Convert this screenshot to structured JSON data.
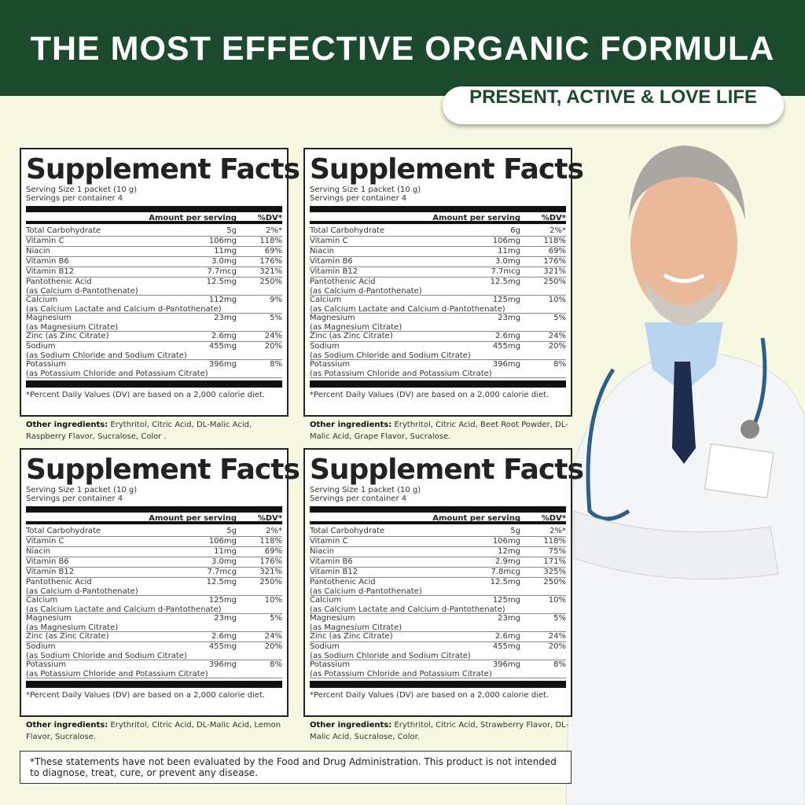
{
  "header": {
    "title": "THE MOST EFFECTIVE ORGANIC FORMULA",
    "tagline": "PRESENT, ACTIVE & LOVE LIFE",
    "colors": {
      "banner": "#1b4a2c",
      "background": "#f6f8e2"
    }
  },
  "panels": [
    {
      "title": "Supplement Facts",
      "serving_size": "Serving Size 1 packet (10 g)",
      "servings": "Servings per container 4",
      "col_amount": "Amount per serving",
      "col_dv": "%DV*",
      "rows": [
        {
          "name": "Total Carbohydrate",
          "sub": "",
          "amount": "5g",
          "dv": "2%*"
        },
        {
          "name": "Vitamin  C",
          "sub": "",
          "amount": "106mg",
          "dv": "118%"
        },
        {
          "name": "Niacin",
          "sub": "",
          "amount": "11mg",
          "dv": "69%"
        },
        {
          "name": "Vitamin B6",
          "sub": "",
          "amount": "3.0mg",
          "dv": "176%"
        },
        {
          "name": "Vitamin B12",
          "sub": "",
          "amount": "7.7mcg",
          "dv": "321%"
        },
        {
          "name": "Pantothenic Acid",
          "sub": "(as Calcium d-Pantothenate)",
          "amount": "12.5mg",
          "dv": "250%"
        },
        {
          "name": "Calcium",
          "sub": "(as Calcium Lactate and Calcium d-Pantothenate)",
          "amount": "112mg",
          "dv": "9%"
        },
        {
          "name": "Magnesium",
          "sub": "(as Magnesium Citrate)",
          "amount": "23mg",
          "dv": "5%"
        },
        {
          "name": "Zinc (as Zinc Citrate)",
          "sub": "",
          "amount": "2.6mg",
          "dv": "24%"
        },
        {
          "name": "Sodium",
          "sub": "(as Sodium Chloride and Sodium Citrate)",
          "amount": "455mg",
          "dv": "20%"
        },
        {
          "name": "Potassium",
          "sub": "(as Potassium Chloride and Potassium Citrate)",
          "amount": "396mg",
          "dv": "8%"
        }
      ],
      "footnote": "*Percent Daily Values (DV) are based on a 2,000 calorie diet.",
      "other_label": "Other ingredients:",
      "other": "Erythritol, Citric Acid, DL-Malic Acid, Raspberry Flavor, Sucralose, Color ."
    },
    {
      "title": "Supplement Facts",
      "serving_size": "Serving Size 1 packet (10 g)",
      "servings": "Servings per container 4",
      "col_amount": "Amount per serving",
      "col_dv": "%DV*",
      "rows": [
        {
          "name": "Total Carbohydrate",
          "sub": "",
          "amount": "6g",
          "dv": "2%*"
        },
        {
          "name": "Vitamin  C",
          "sub": "",
          "amount": "106mg",
          "dv": "118%"
        },
        {
          "name": "Niacin",
          "sub": "",
          "amount": "11mg",
          "dv": "69%"
        },
        {
          "name": "Vitamin B6",
          "sub": "",
          "amount": "3.0mg",
          "dv": "176%"
        },
        {
          "name": "Vitamin B12",
          "sub": "",
          "amount": "7.7mcg",
          "dv": "321%"
        },
        {
          "name": "Pantothenic Acid",
          "sub": "(as Calcium d-Pantothenate)",
          "amount": "12.5mg",
          "dv": "250%"
        },
        {
          "name": "Calcium",
          "sub": "(as Calcium Lactate and Calcium d-Pantothenate)",
          "amount": "125mg",
          "dv": "10%"
        },
        {
          "name": "Magnesium",
          "sub": "(as Magnesium Citrate)",
          "amount": "23mg",
          "dv": "5%"
        },
        {
          "name": "Zinc (as Zinc Citrate)",
          "sub": "",
          "amount": "2.6mg",
          "dv": "24%"
        },
        {
          "name": "Sodium",
          "sub": "(as Sodium Chloride and Sodium Citrate)",
          "amount": "455mg",
          "dv": "20%"
        },
        {
          "name": "Potassium",
          "sub": "(as Potassium Chloride and Potassium Citrate)",
          "amount": "396mg",
          "dv": "8%"
        }
      ],
      "footnote": "*Percent Daily Values (DV) are based on a 2,000 calorie diet.",
      "other_label": "Other ingredients:",
      "other": "Erythritol, Citric Acid, Beet Root Powder, DL-Malic Acid, Grape Flavor, Sucralose."
    },
    {
      "title": "Supplement Facts",
      "serving_size": "Serving Size 1 packet (10 g)",
      "servings": "Servings per container 4",
      "col_amount": "Amount per serving",
      "col_dv": "%DV*",
      "rows": [
        {
          "name": "Total Carbohydrate",
          "sub": "",
          "amount": "5g",
          "dv": "2%*"
        },
        {
          "name": "Vitamin  C",
          "sub": "",
          "amount": "106mg",
          "dv": "118%"
        },
        {
          "name": "Niacin",
          "sub": "",
          "amount": "11mg",
          "dv": "69%"
        },
        {
          "name": "Vitamin B6",
          "sub": "",
          "amount": "3.0mg",
          "dv": "176%"
        },
        {
          "name": "Vitamin B12",
          "sub": "",
          "amount": "7.7mcg",
          "dv": "321%"
        },
        {
          "name": "Pantothenic Acid",
          "sub": "(as Calcium d-Pantothenate)",
          "amount": "12.5mg",
          "dv": "250%"
        },
        {
          "name": "Calcium",
          "sub": "(as Calcium Lactate and Calcium d-Pantothenate)",
          "amount": "125mg",
          "dv": "10%"
        },
        {
          "name": "Magnesium",
          "sub": "(as Magnesium Citrate)",
          "amount": "23mg",
          "dv": "5%"
        },
        {
          "name": "Zinc (as Zinc Citrate)",
          "sub": "",
          "amount": "2.6mg",
          "dv": "24%"
        },
        {
          "name": "Sodium",
          "sub": "(as Sodium Chloride and Sodium Citrate)",
          "amount": "455mg",
          "dv": "20%"
        },
        {
          "name": "Potassium",
          "sub": "(as Potassium Chloride and Potassium Citrate)",
          "amount": "396mg",
          "dv": "8%"
        }
      ],
      "footnote": "*Percent Daily Values (DV) are based on a 2,000 calorie diet.",
      "other_label": "Other ingredients:",
      "other": "Erythritol, Citric Acid, DL-Malic Acid, Lemon Flavor, Sucralose."
    },
    {
      "title": "Supplement Facts",
      "serving_size": "Serving Size 1 packet (10 g)",
      "servings": "Servings per container 4",
      "col_amount": "Amount per serving",
      "col_dv": "%DV*",
      "rows": [
        {
          "name": "Total Carbohydrate",
          "sub": "",
          "amount": "5g",
          "dv": "2%*"
        },
        {
          "name": "Vitamin  C",
          "sub": "",
          "amount": "106mg",
          "dv": "118%"
        },
        {
          "name": "Niacin",
          "sub": "",
          "amount": "12mg",
          "dv": "75%"
        },
        {
          "name": "Vitamin B6",
          "sub": "",
          "amount": "2.9mg",
          "dv": "171%"
        },
        {
          "name": "Vitamin B12",
          "sub": "",
          "amount": "7.8mcg",
          "dv": "325%"
        },
        {
          "name": "Pantothenic Acid",
          "sub": "(as Calcium d-Pantothenate)",
          "amount": "12.5mg",
          "dv": "250%"
        },
        {
          "name": "Calcium",
          "sub": "(as Calcium Lactate and Calcium d-Pantothenate)",
          "amount": "125mg",
          "dv": "10%"
        },
        {
          "name": "Magnesium",
          "sub": "(as Magnesium Citrate)",
          "amount": "23mg",
          "dv": "5%"
        },
        {
          "name": "Zinc (as Zinc Citrate)",
          "sub": "",
          "amount": "2.6mg",
          "dv": "24%"
        },
        {
          "name": "Sodium",
          "sub": "(as Sodium Chloride and Sodium Citrate)",
          "amount": "455mg",
          "dv": "20%"
        },
        {
          "name": "Potassium",
          "sub": "(as Potassium Chloride and Potassium Citrate)",
          "amount": "396mg",
          "dv": "8%"
        }
      ],
      "footnote": "*Percent Daily Values (DV) are based on a 2,000 calorie diet.",
      "other_label": "Other ingredients:",
      "other": "Erythritol, Citric Acid, Strawberry Flavor, DL-Malic Acid, Sucralose, Color."
    }
  ],
  "disclaimer": "*These statements have not been evaluated by the Food and Drug Administration. This product is not intended to diagnose, treat, cure, or prevent any disease.",
  "image": {
    "subject": "smiling doctor in white coat with stethoscope, arms crossed"
  }
}
